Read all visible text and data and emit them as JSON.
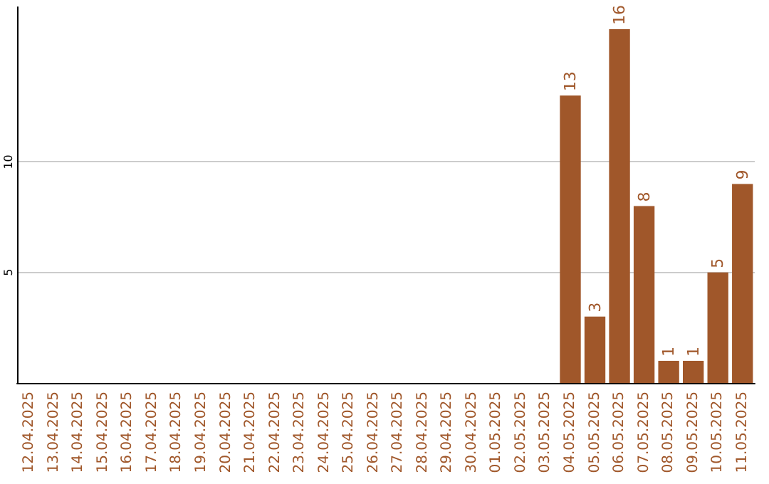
{
  "chart_data": {
    "type": "bar",
    "categories": [
      "12.04.2025",
      "13.04.2025",
      "14.04.2025",
      "15.04.2025",
      "16.04.2025",
      "17.04.2025",
      "18.04.2025",
      "19.04.2025",
      "20.04.2025",
      "21.04.2025",
      "22.04.2025",
      "23.04.2025",
      "24.04.2025",
      "25.04.2025",
      "26.04.2025",
      "27.04.2025",
      "28.04.2025",
      "29.04.2025",
      "30.04.2025",
      "01.05.2025",
      "02.05.2025",
      "03.05.2025",
      "04.05.2025",
      "05.05.2025",
      "06.05.2025",
      "07.05.2025",
      "08.05.2025",
      "09.05.2025",
      "10.05.2025",
      "11.05.2025"
    ],
    "values": [
      0,
      0,
      0,
      0,
      0,
      0,
      0,
      0,
      0,
      0,
      0,
      0,
      0,
      0,
      0,
      0,
      0,
      0,
      0,
      0,
      0,
      0,
      13,
      3,
      16,
      8,
      1,
      1,
      5,
      9
    ],
    "value_labels": [
      null,
      null,
      null,
      null,
      null,
      null,
      null,
      null,
      null,
      null,
      null,
      null,
      null,
      null,
      null,
      null,
      null,
      null,
      null,
      null,
      null,
      null,
      "13",
      "3",
      "16",
      "8",
      "1",
      "1",
      "5",
      "9"
    ],
    "color": "#a0572a",
    "ylim": [
      0,
      17
    ],
    "yticks": [
      5,
      10
    ],
    "grid": "y"
  }
}
